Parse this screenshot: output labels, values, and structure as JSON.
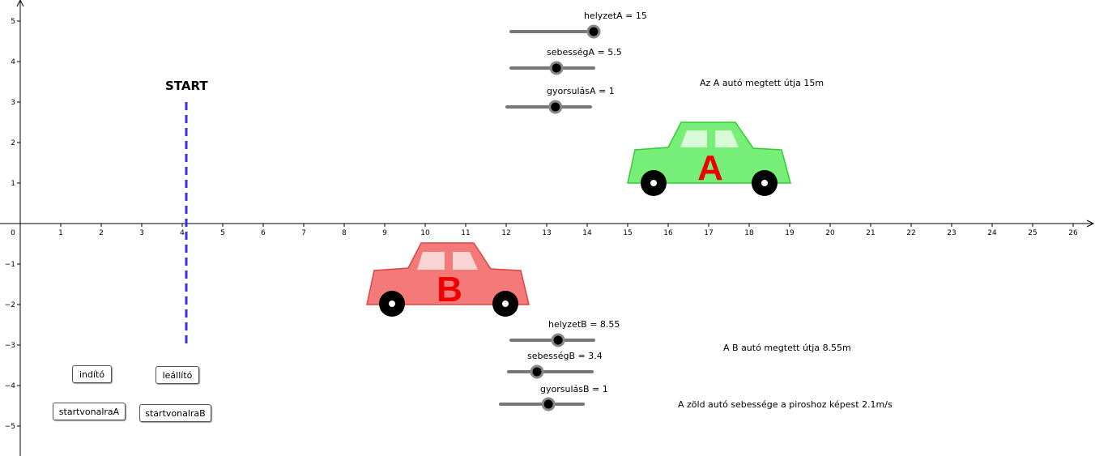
{
  "axes": {
    "x_ticks": [
      "0",
      "1",
      "2",
      "3",
      "4",
      "5",
      "6",
      "7",
      "8",
      "9",
      "10",
      "11",
      "12",
      "13",
      "14",
      "15",
      "16",
      "17",
      "18",
      "19",
      "20",
      "21",
      "22",
      "23",
      "24",
      "25",
      "26"
    ],
    "y_ticks": [
      "5",
      "4",
      "3",
      "2",
      "1",
      "−1",
      "−2",
      "−3",
      "−4",
      "−5"
    ]
  },
  "start_label": "START",
  "car_a": {
    "letter": "A",
    "body_color": "#77ee77",
    "outline": "#33cc33"
  },
  "car_b": {
    "letter": "B",
    "body_color": "#f47a7a",
    "outline": "#dd4444"
  },
  "sliders": {
    "helyzetA": {
      "label": "helyzetA = 15",
      "fraction": 1.0
    },
    "sebessegA": {
      "label": "sebességA = 5.5",
      "fraction": 0.55
    },
    "gyorsulasA": {
      "label": "gyorsulásA = 1",
      "fraction": 0.58
    },
    "helyzetB": {
      "label": "helyzetB = 8.55",
      "fraction": 0.57
    },
    "sebessegB": {
      "label": "sebességB = 3.4",
      "fraction": 0.34
    },
    "gyorsulasB": {
      "label": "gyorsulásB = 1",
      "fraction": 0.58
    }
  },
  "info": {
    "a_distance": "Az A autó megtett útja 15m",
    "b_distance": "A B autó megtett útja 8.55m",
    "relative_speed": "A zöld autó sebessége a piroshoz képest 2.1m/s"
  },
  "buttons": {
    "indito": "indító",
    "leallito": "leállító",
    "startvonalraA": "startvonalraA",
    "startvonalraB": "startvonalraB"
  }
}
